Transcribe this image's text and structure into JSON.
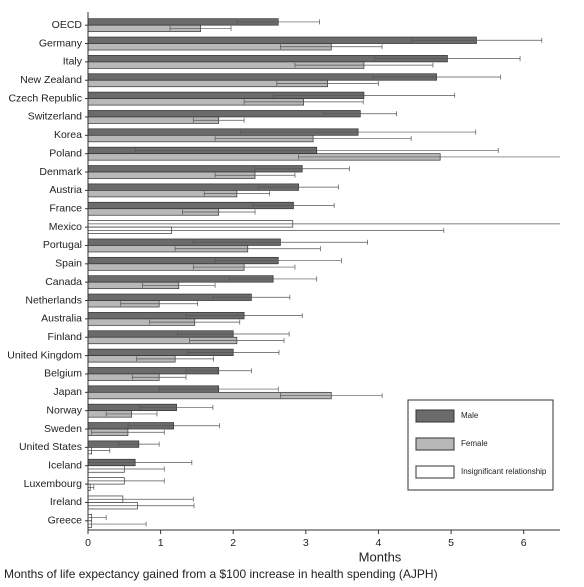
{
  "chart_data": {
    "type": "hbar-error",
    "caption": "Months of life expectancy gained from a $100 increase in health spending (AJPH)",
    "xlabel": "Months",
    "xlim": [
      0,
      6.5
    ],
    "xticks": [
      0,
      1,
      2,
      3,
      4,
      5,
      6
    ],
    "insignificant_label": "Insignificant relationship",
    "insignificant_color": "#ffffff",
    "categories": [
      "OECD",
      "Germany",
      "Italy",
      "New Zealand",
      "Czech Republic",
      "Switzerland",
      "Korea",
      "Poland",
      "Denmark",
      "Austria",
      "France",
      "Mexico",
      "Portugal",
      "Spain",
      "Canada",
      "Netherlands",
      "Australia",
      "Finland",
      "United Kingdom",
      "Belgium",
      "Japan",
      "Norway",
      "Sweden",
      "United States",
      "Iceland",
      "Luxembourg",
      "Ireland",
      "Greece"
    ],
    "series": [
      {
        "name": "Male",
        "color": "#6b6b6b",
        "values": [
          2.62,
          5.35,
          4.95,
          4.8,
          3.8,
          3.75,
          3.72,
          3.15,
          2.95,
          2.9,
          2.83,
          2.82,
          2.65,
          2.62,
          2.55,
          2.25,
          2.15,
          2.0,
          2.0,
          1.8,
          1.8,
          1.22,
          1.18,
          0.7,
          0.65,
          0.5,
          0.48,
          0.05
        ],
        "errors": [
          0.57,
          0.9,
          1.0,
          0.88,
          1.25,
          0.5,
          1.62,
          2.5,
          0.65,
          0.55,
          0.56,
          3.7,
          1.2,
          0.87,
          0.6,
          0.53,
          0.8,
          0.77,
          0.63,
          0.45,
          0.82,
          0.5,
          0.63,
          0.28,
          0.78,
          0.55,
          0.97,
          0.2
        ],
        "significant": [
          true,
          true,
          true,
          true,
          true,
          true,
          true,
          true,
          true,
          true,
          true,
          false,
          true,
          true,
          true,
          true,
          true,
          true,
          true,
          true,
          true,
          true,
          true,
          true,
          true,
          false,
          false,
          false
        ]
      },
      {
        "name": "Female",
        "color": "#b8b8b8",
        "values": [
          1.55,
          3.35,
          3.8,
          3.3,
          2.97,
          1.8,
          3.1,
          4.85,
          2.3,
          2.05,
          1.8,
          1.15,
          2.2,
          2.15,
          1.25,
          0.98,
          1.47,
          2.05,
          1.2,
          0.98,
          3.35,
          0.6,
          0.55,
          0.05,
          0.5,
          0.03,
          0.68,
          0.05
        ],
        "errors": [
          0.42,
          0.7,
          0.95,
          0.7,
          0.82,
          0.35,
          1.35,
          1.95,
          0.55,
          0.45,
          0.5,
          3.75,
          1.0,
          0.7,
          0.5,
          0.53,
          0.62,
          0.65,
          0.53,
          0.37,
          0.7,
          0.35,
          0.5,
          0.25,
          0.55,
          0.05,
          0.78,
          0.75
        ],
        "significant": [
          true,
          true,
          true,
          true,
          true,
          true,
          true,
          true,
          true,
          true,
          true,
          false,
          true,
          true,
          true,
          true,
          true,
          true,
          true,
          true,
          true,
          true,
          true,
          false,
          false,
          false,
          false,
          false
        ]
      }
    ]
  }
}
